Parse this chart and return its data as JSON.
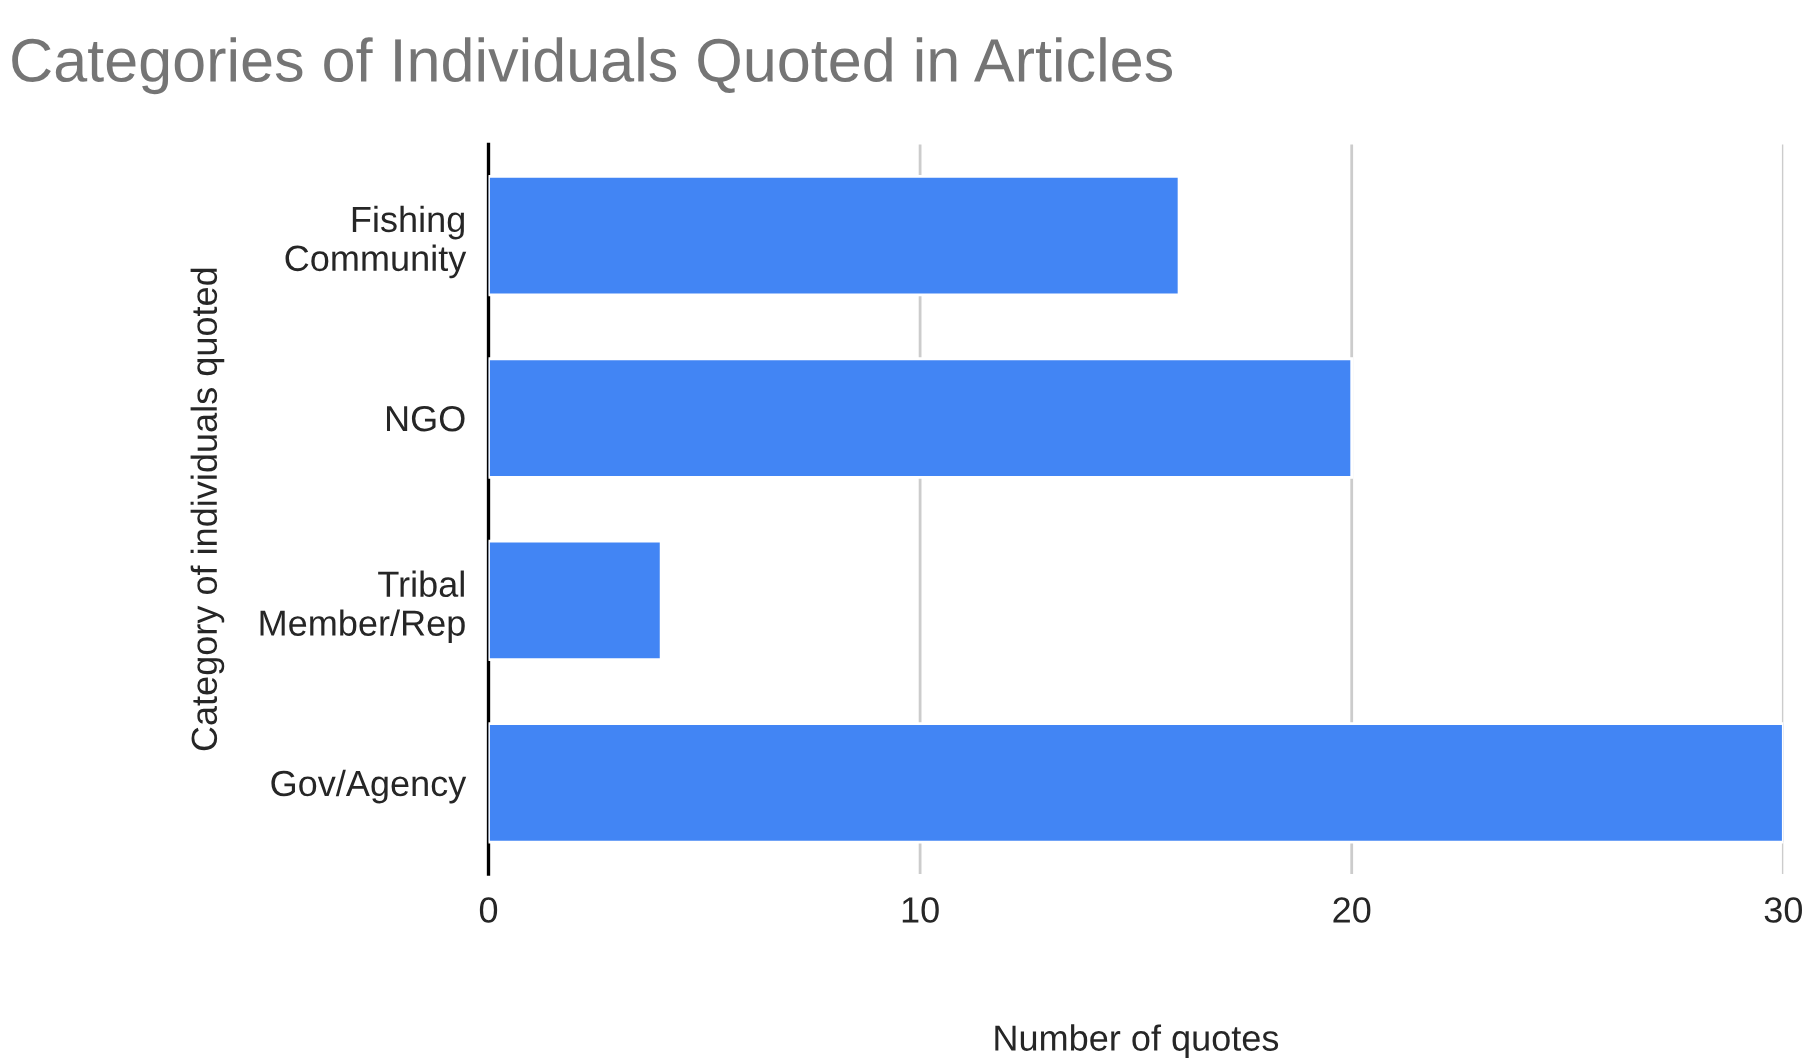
{
  "chart_data": {
    "type": "bar",
    "orientation": "horizontal",
    "title": "Categories of Individuals Quoted in Articles",
    "xlabel": "Number of quotes",
    "ylabel": "Category of individuals quoted",
    "categories": [
      "Fishing\nCommunity",
      "NGO",
      "Tribal\nMember/Rep",
      "Gov/Agency"
    ],
    "values": [
      16,
      20,
      4,
      30
    ],
    "color": "#4285f4",
    "xlim": [
      0,
      30
    ],
    "xticks": [
      0,
      10,
      20,
      30
    ],
    "grid": "x"
  }
}
